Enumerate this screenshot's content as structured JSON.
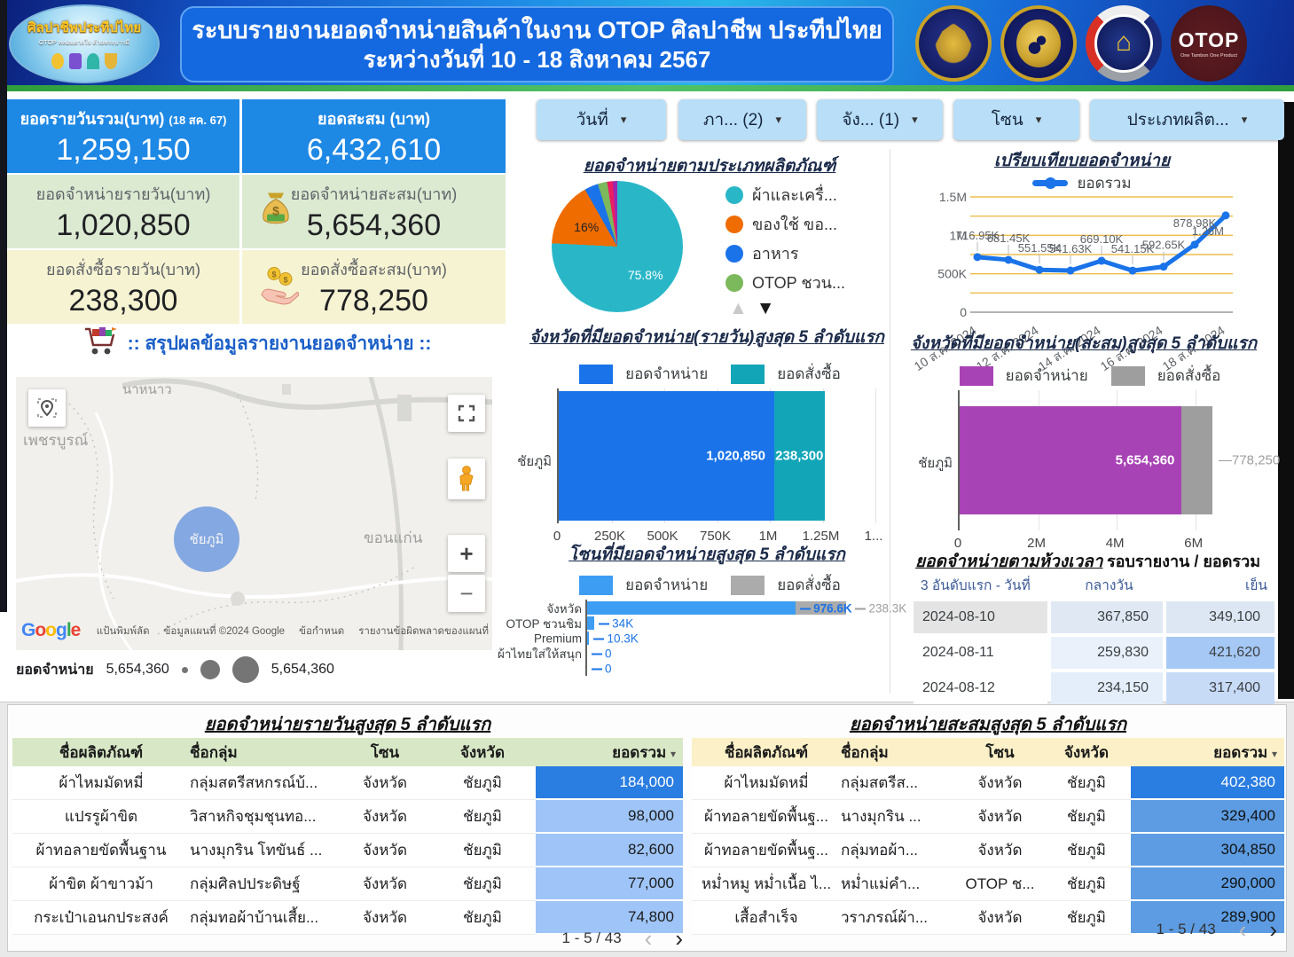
{
  "header": {
    "badge_line1": "ศิลปาชีพประทีปไทย",
    "badge_line2": "OTOP หลอมดวงใจ ด้วยพระบารมี",
    "title_line1": "ระบบรายงานยอดจำหน่ายสินค้าในงาน OTOP ศิลปาชีพ ประทีปไทย",
    "title_line2": "ระหว่างวันที่ 10 - 18 สิงหาคม  2567",
    "otop_text": "OTOP",
    "otop_sub": "One Tambon One Product",
    "cdd_glyph": "⌂"
  },
  "icons": {
    "dropdown": "▾",
    "sort": "▾",
    "scroll_up": "▲",
    "scroll_down": "▼",
    "page_prev": "‹",
    "page_next": "›",
    "zoom_in": "+",
    "zoom_out": "−"
  },
  "kpis": {
    "daily_total": {
      "label": "ยอดรายวันรวม(บาท)",
      "note": "(18 สค. 67)",
      "value": "1,259,150"
    },
    "cumulative_total": {
      "label": "ยอดสะสม (บาท)",
      "value": "6,432,610"
    },
    "daily_sales": {
      "label": "ยอดจำหน่ายรายวัน(บาท)",
      "value": "1,020,850"
    },
    "cumulative_sales": {
      "label": "ยอดจำหน่ายสะสม(บาท)",
      "value": "5,654,360"
    },
    "daily_orders": {
      "label": "ยอดสั่งซื้อรายวัน(บาท)",
      "value": "238,300"
    },
    "cumulative_orders": {
      "label": "ยอดสั่งซื้อสะสม(บาท)",
      "value": "778,250"
    }
  },
  "filters": {
    "date": "วันที่",
    "region": "ภา... (2)",
    "province": "จัง... (1)",
    "zone": "โซน",
    "product_type": "ประเภทผลิต..."
  },
  "summary_title": ":: สรุปผลข้อมูลรายงานยอดจำหน่าย ::",
  "map": {
    "labels": {
      "north": "นาหนาว",
      "west": "เพชรบูรณ์",
      "center": "ชัยภูมิ",
      "east": "ขอนแก่น"
    },
    "google_letters": [
      {
        "ch": "G",
        "c": "#4285F4"
      },
      {
        "ch": "o",
        "c": "#EA4335"
      },
      {
        "ch": "o",
        "c": "#FBBC05"
      },
      {
        "ch": "g",
        "c": "#4285F4"
      },
      {
        "ch": "l",
        "c": "#34A853"
      },
      {
        "ch": "e",
        "c": "#EA4335"
      }
    ],
    "attribution": {
      "keyboard": "แป้นพิมพ์ลัด",
      "data": "ข้อมูลแผนที่ ©2024 Google",
      "terms": "ข้อกำหนด",
      "report": "รายงานข้อผิดพลาดของแผนที่"
    },
    "bubble_legend": {
      "label": "ยอดจำหน่าย",
      "min": "5,654,360",
      "max": "5,654,360"
    }
  },
  "chart_data": {
    "pie": {
      "type": "pie",
      "title": "ยอดจำหน่ายตามประเภทผลิตภัณฑ์",
      "slices": [
        {
          "label": "ผ้าและเครื่...",
          "color": "#29b7c8",
          "pct": 75.8,
          "pct_label": "75.8%"
        },
        {
          "label": "ของใช้ ขอ...",
          "color": "#ef6c00",
          "pct": 16,
          "pct_label": "16%"
        },
        {
          "label": "อาหาร",
          "color": "#1a73e8",
          "pct": 3.4,
          "pct_label": ""
        },
        {
          "label": "OTOP ชวน...",
          "color": "#7cb85c",
          "pct": 2.3,
          "pct_label": ""
        },
        {
          "label": "",
          "color": "#e91e63",
          "pct": 1.4,
          "pct_label": ""
        },
        {
          "label": "",
          "color": "#9c27b0",
          "pct": 1.1,
          "pct_label": ""
        }
      ]
    },
    "line": {
      "type": "line",
      "title": "เปรียบเทียบยอดจำหน่าย",
      "series_name": "ยอดรวม",
      "color": "#1a73e8",
      "grid_color": "#eebd4d",
      "ylim": [
        0,
        1500000
      ],
      "dates": [
        "10 ส.ค. 2024",
        "11 ส.ค. 2024",
        "12 ส.ค. 2024",
        "13 ส.ค. 2024",
        "14 ส.ค. 2024",
        "15 ส.ค. 2024",
        "16 ส.ค. 2024",
        "17 ส.ค. 2024",
        "18 ส.ค. 2024"
      ],
      "values": [
        716950,
        681450,
        551550,
        541630,
        669100,
        541150,
        592650,
        878980,
        1259150
      ],
      "point_labels": [
        "716.95K",
        "681.45K",
        "551.55K",
        "541.63K",
        "669.10K",
        "541.15K",
        "592.65K",
        "878.98K",
        "1.26M"
      ],
      "y_ticks": [
        {
          "v": 1500000,
          "label": "1.5M"
        },
        {
          "v": 1000000,
          "label": "1M"
        },
        {
          "v": 500000,
          "label": "500K"
        },
        {
          "v": 0,
          "label": "0"
        }
      ],
      "x_ticks": [
        {
          "i": 0,
          "label": "10 ส.ค. 2024"
        },
        {
          "i": 2,
          "label": "12 ส.ค. 2024"
        },
        {
          "i": 4,
          "label": "14 ส.ค. 2024"
        },
        {
          "i": 6,
          "label": "16 ส.ค. 2024"
        },
        {
          "i": 8,
          "label": "18 ส.ค. 2024"
        }
      ]
    },
    "daily_bar": {
      "type": "bar",
      "title": "จังหวัดที่มียอดจำหน่าย(รายวัน)สูงสุด 5 ลำดับแรก",
      "legend": [
        {
          "label": "ยอดจำหน่าย",
          "color": "#1a73e8"
        },
        {
          "label": "ยอดสั่งซื้อ",
          "color": "#12a5b8"
        }
      ],
      "category": "ชัยภูมิ",
      "sales": 1020850,
      "orders": 238300,
      "sales_label": "1,020,850",
      "orders_label": "238,300",
      "xmax": 1500000,
      "ticks": [
        {
          "v": 0,
          "label": "0"
        },
        {
          "v": 250000,
          "label": "250K"
        },
        {
          "v": 500000,
          "label": "500K"
        },
        {
          "v": 750000,
          "label": "750K"
        },
        {
          "v": 1000000,
          "label": "1M"
        },
        {
          "v": 1250000,
          "label": "1.25M"
        },
        {
          "v": 1500000,
          "label": "1..."
        }
      ]
    },
    "cumulative_bar": {
      "type": "bar",
      "title": "จังหวัดที่มียอดจำหน่าย(สะสม)สูงสุด 5 ลำดับแรก",
      "legend": [
        {
          "label": "ยอดจำหน่าย",
          "color": "#a843b5"
        },
        {
          "label": "ยอดสั่งซื้อ",
          "color": "#9e9e9e"
        }
      ],
      "category": "ชัยภูมิ",
      "sales": 5654360,
      "orders": 778250,
      "sales_label": "5,654,360",
      "orders_label": "778,250",
      "xmax": 7000000,
      "ticks": [
        {
          "v": 0,
          "label": "0"
        },
        {
          "v": 2000000,
          "label": "2M"
        },
        {
          "v": 4000000,
          "label": "4M"
        },
        {
          "v": 6000000,
          "label": "6M"
        }
      ]
    },
    "zone_bar": {
      "type": "bar",
      "title": "โซนที่มียอดจำหน่ายสูงสุด 5 ลำดับแรก",
      "legend": [
        {
          "label": "ยอดจำหน่าย",
          "color": "#3d9df3"
        },
        {
          "label": "ยอดสั่งซื้อ",
          "color": "#ababab"
        }
      ],
      "categories": [
        "จังหวัด",
        "OTOP ชวนชิม",
        "Premium",
        "ผ้าไทยใส่ให้สนุก",
        ""
      ],
      "sales": [
        976600,
        34000,
        10300,
        0,
        0
      ],
      "orders": [
        238300,
        0,
        0,
        0,
        0
      ],
      "sales_labels": [
        "976.6K",
        "34K",
        "10.3K",
        "0",
        "0"
      ],
      "orders_label": "238.3K",
      "xmax": 1350000,
      "ticks": [
        {
          "v": 0,
          "label": "0"
        },
        {
          "v": 250000,
          "label": "250K"
        },
        {
          "v": 500000,
          "label": "500K"
        },
        {
          "v": 750000,
          "label": "750K"
        },
        {
          "v": 1000000,
          "label": "1M"
        },
        {
          "v": 1250000,
          "label": "1.25M"
        }
      ]
    }
  },
  "time_table": {
    "title": "ยอดจำหน่ายตามห้วงเวลา",
    "subtitle": "รอบรายงาน / ยอดรวม",
    "columns": [
      "3 อันดับแรก - วันที่",
      "กลางวัน",
      "เย็น"
    ],
    "rows": [
      [
        "2024-08-10",
        "367,850",
        "349,100"
      ],
      [
        "2024-08-11",
        "259,830",
        "421,620"
      ],
      [
        "2024-08-12",
        "234,150",
        "317,400"
      ]
    ]
  },
  "tables": {
    "daily": {
      "title": "ยอดจำหน่ายรายวันสูงสุด 5 ลำดับแรก",
      "columns": [
        "ชื่อผลิตภัณฑ์",
        "ชื่อกลุ่ม",
        "โซน",
        "จังหวัด",
        "ยอดรวม"
      ],
      "rows": [
        [
          "ผ้าไหมมัดหมี่",
          "กลุ่มสตรีสหกรณ์บ้...",
          "จังหวัด",
          "ชัยภูมิ",
          "184,000"
        ],
        [
          "แปรรูผ้าขิต",
          "วิสาหกิจชุมชุนทอ...",
          "จังหวัด",
          "ชัยภูมิ",
          "98,000"
        ],
        [
          "ผ้าทอลายขัดพื้นฐาน",
          "นางมุกริน โทขันธ์ ...",
          "จังหวัด",
          "ชัยภูมิ",
          "82,600"
        ],
        [
          "ผ้าขิต ผ้าขาวม้า",
          "กลุ่มศิลปประดิษฐ์",
          "จังหวัด",
          "ชัยภูมิ",
          "77,000"
        ],
        [
          "กระเป๋าเอนกประสงค์",
          "กลุ่มทอผ้าบ้านเสี้ย...",
          "จังหวัด",
          "ชัยภูมิ",
          "74,800"
        ]
      ],
      "pagination": "1 - 5 / 43"
    },
    "cumulative": {
      "title": "ยอดจำหน่ายสะสมสูงสุด 5 ลำดับแรก",
      "columns": [
        "ชื่อผลิตภัณฑ์",
        "ชื่อกลุ่ม",
        "โซน",
        "จังหวัด",
        "ยอดรวม"
      ],
      "rows": [
        [
          "ผ้าไหมมัดหมี่",
          "กลุ่มสตรีส...",
          "จังหวัด",
          "ชัยภูมิ",
          "402,380"
        ],
        [
          "ผ้าทอลายขัดพื้นฐ...",
          "นางมุกริน ...",
          "จังหวัด",
          "ชัยภูมิ",
          "329,400"
        ],
        [
          "ผ้าทอลายขัดพื้นฐ...",
          "กลุ่มทอผ้า...",
          "จังหวัด",
          "ชัยภูมิ",
          "304,850"
        ],
        [
          "หม่ำหมู หม่ำเนื้อ ไ...",
          "หม่ำแม่คำ...",
          "OTOP ช...",
          "ชัยภูมิ",
          "290,000"
        ],
        [
          "เสื้อสำเร็จ",
          "วราภรณ์ผ้า...",
          "จังหวัด",
          "ชัยภูมิ",
          "289,900"
        ]
      ],
      "pagination": "1 - 5 / 43"
    }
  }
}
